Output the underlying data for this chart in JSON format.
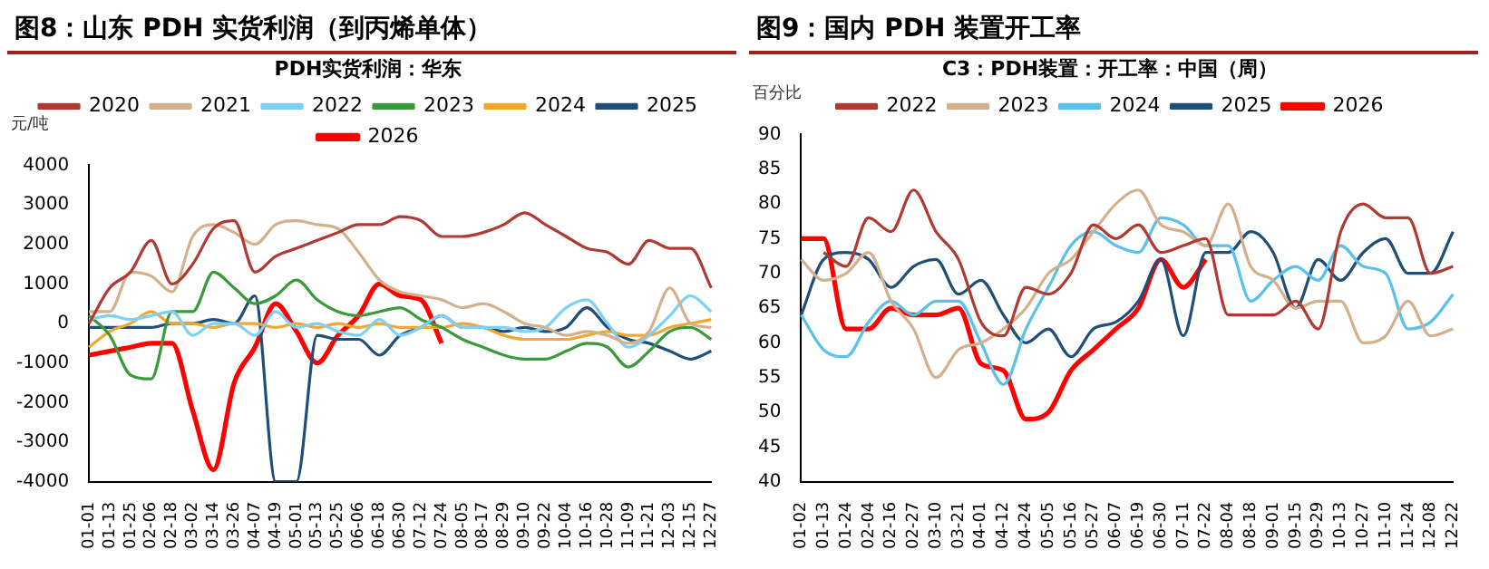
{
  "chart_data": [
    {
      "type": "line",
      "title": "图8：山东 PDH 实货利润（到丙烯单体）",
      "subtitle": "PDH实货利润：华东",
      "ylabel": "元/吨",
      "legend": "top",
      "grid": false,
      "marker": "none",
      "line_style": "solid",
      "ylim": [
        -4000,
        4000
      ],
      "yticks": [
        -4000,
        -3000,
        -2000,
        -1000,
        0,
        1000,
        2000,
        3000,
        4000
      ],
      "categories": [
        "01-01",
        "01-13",
        "01-25",
        "02-06",
        "02-18",
        "03-02",
        "03-14",
        "03-26",
        "04-07",
        "04-19",
        "05-01",
        "05-13",
        "05-25",
        "06-06",
        "06-18",
        "06-30",
        "07-12",
        "07-24",
        "08-05",
        "08-17",
        "08-29",
        "09-10",
        "09-22",
        "10-04",
        "10-16",
        "10-28",
        "11-09",
        "11-21",
        "12-03",
        "12-15",
        "12-27"
      ],
      "series": [
        {
          "name": "2020",
          "color": "#b03a32",
          "values": [
            0,
            900,
            1300,
            2100,
            1000,
            1500,
            2400,
            2600,
            1300,
            1700,
            1900,
            2100,
            2300,
            2500,
            2500,
            2700,
            2600,
            2200,
            2200,
            2300,
            2500,
            2800,
            2500,
            2200,
            1900,
            1800,
            1500,
            2100,
            1900,
            1900,
            900
          ]
        },
        {
          "name": "2021",
          "color": "#d4b08c",
          "values": [
            300,
            300,
            1300,
            1200,
            800,
            2200,
            2500,
            2300,
            2000,
            2500,
            2600,
            2500,
            2400,
            1800,
            1100,
            800,
            700,
            600,
            400,
            500,
            300,
            0,
            -100,
            -300,
            -200,
            -300,
            -500,
            -200,
            900,
            0,
            -100
          ]
        },
        {
          "name": "2022",
          "color": "#7fd0f5",
          "values": [
            100,
            200,
            100,
            200,
            300,
            -300,
            0,
            0,
            -300,
            300,
            -100,
            0,
            -200,
            -300,
            100,
            -300,
            -100,
            200,
            -100,
            -100,
            -100,
            -200,
            -100,
            400,
            600,
            0,
            -600,
            -300,
            200,
            700,
            300
          ]
        },
        {
          "name": "2023",
          "color": "#3a9a3a",
          "values": [
            200,
            -300,
            -1300,
            -1400,
            300,
            300,
            1300,
            900,
            500,
            700,
            1100,
            600,
            300,
            200,
            300,
            400,
            100,
            -100,
            -400,
            -600,
            -800,
            -900,
            -900,
            -700,
            -500,
            -600,
            -1100,
            -700,
            -200,
            -100,
            -400
          ]
        },
        {
          "name": "2024",
          "color": "#f0a830",
          "values": [
            -600,
            -200,
            0,
            300,
            0,
            0,
            -100,
            0,
            0,
            -100,
            0,
            -100,
            0,
            -100,
            0,
            -100,
            -100,
            -100,
            0,
            -100,
            -300,
            -400,
            -400,
            -400,
            -300,
            -200,
            -300,
            -300,
            -100,
            0,
            100
          ]
        },
        {
          "name": "2025",
          "color": "#1f4e79",
          "values": [
            -100,
            -100,
            -100,
            -100,
            0,
            0,
            100,
            0,
            700,
            -4000,
            -4000,
            -300,
            -400,
            -400,
            -800,
            -300,
            -100,
            200,
            -100,
            -100,
            -200,
            -100,
            -200,
            -100,
            400,
            -100,
            -400,
            -500,
            -700,
            -900,
            -700
          ]
        },
        {
          "name": "2026",
          "color": "#ff0000",
          "values": [
            -800,
            -700,
            -600,
            -500,
            -500,
            -2200,
            -3700,
            -1500,
            -600,
            500,
            -200,
            -1000,
            -300,
            200,
            1000,
            700,
            600,
            -500,
            null,
            null,
            null,
            null,
            null,
            null,
            null,
            null,
            null,
            null,
            null,
            null,
            null
          ]
        }
      ]
    },
    {
      "type": "line",
      "title": "图9：国内 PDH 装置开工率",
      "subtitle": "C3：PDH装置：开工率：中国（周）",
      "ylabel": "百分比",
      "legend": "top",
      "grid": false,
      "marker": "none",
      "line_style": "solid",
      "ylim": [
        40,
        90
      ],
      "yticks": [
        40,
        45,
        50,
        55,
        60,
        65,
        70,
        75,
        80,
        85,
        90
      ],
      "categories": [
        "01-02",
        "01-13",
        "01-24",
        "02-04",
        "02-16",
        "02-27",
        "03-10",
        "03-21",
        "04-01",
        "04-12",
        "04-24",
        "05-05",
        "05-16",
        "05-27",
        "06-07",
        "06-19",
        "06-30",
        "07-11",
        "07-22",
        "08-04",
        "08-18",
        "09-01",
        "09-15",
        "09-29",
        "10-13",
        "10-27",
        "11-10",
        "11-24",
        "12-08",
        "12-22"
      ],
      "series": [
        {
          "name": "2022",
          "color": "#b03a32",
          "values": [
            null,
            73,
            71,
            78,
            76,
            82,
            76,
            72,
            63,
            61,
            68,
            67,
            70,
            77,
            75,
            77,
            73,
            74,
            75,
            64,
            64,
            64,
            66,
            62,
            76,
            80,
            78,
            78,
            70,
            71
          ]
        },
        {
          "name": "2023",
          "color": "#d4b08c",
          "values": [
            72,
            69,
            70,
            73,
            66,
            62,
            55,
            59,
            60,
            62,
            65,
            70,
            72,
            76,
            80,
            82,
            77,
            76,
            74,
            80,
            71,
            69,
            65,
            66,
            66,
            60,
            61,
            66,
            61,
            62
          ]
        },
        {
          "name": "2024",
          "color": "#5bc0eb",
          "values": [
            64,
            59,
            58,
            63,
            66,
            64,
            66,
            66,
            60,
            54,
            62,
            68,
            74,
            76,
            74,
            73,
            78,
            77,
            74,
            74,
            66,
            69,
            71,
            69,
            74,
            71,
            70,
            62,
            63,
            67
          ]
        },
        {
          "name": "2025",
          "color": "#1f4e79",
          "values": [
            64,
            72,
            73,
            72,
            68,
            71,
            72,
            67,
            69,
            64,
            60,
            62,
            58,
            62,
            63,
            66,
            72,
            61,
            73,
            73,
            76,
            73,
            65,
            72,
            69,
            73,
            75,
            70,
            70,
            76
          ]
        },
        {
          "name": "2026",
          "color": "#ff0000",
          "values": [
            75,
            75,
            62,
            62,
            65,
            64,
            64,
            65,
            57,
            56,
            49,
            50,
            56,
            59,
            62,
            65,
            72,
            68,
            72,
            null,
            null,
            null,
            null,
            null,
            null,
            null,
            null,
            null,
            null,
            null
          ]
        }
      ]
    }
  ]
}
